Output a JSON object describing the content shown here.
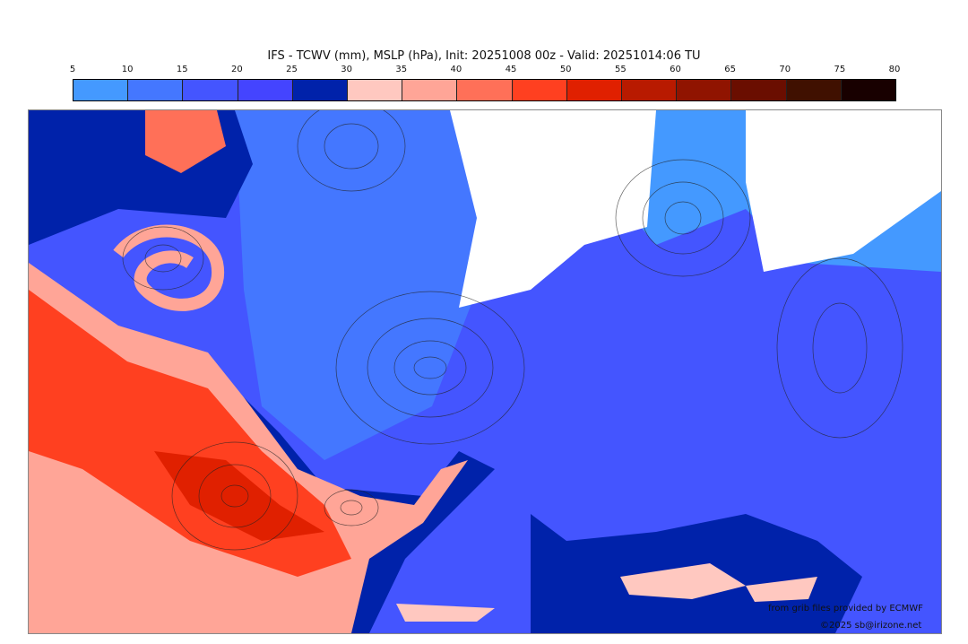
{
  "title": "IFS - TCWV (mm), MSLP (hPa), Init: 20251008 00z - Valid: 20251014:06 TU",
  "colorbar": {
    "ticks": [
      "5",
      "10",
      "15",
      "20",
      "25",
      "30",
      "35",
      "40",
      "45",
      "50",
      "55",
      "60",
      "65",
      "70",
      "75",
      "80"
    ],
    "colors": [
      "#4499ff",
      "#4477ff",
      "#4455ff",
      "#4444ff",
      "#0022aa",
      "#ffc8c0",
      "#ffa597",
      "#ff7058",
      "#ff4020",
      "#e02000",
      "#b81a00",
      "#901400",
      "#6a0e00",
      "#401000",
      "#180000"
    ]
  },
  "credits": {
    "source": "from grib files provided by ECMWF",
    "copyright": "©2025 sb@irizone.net"
  }
}
